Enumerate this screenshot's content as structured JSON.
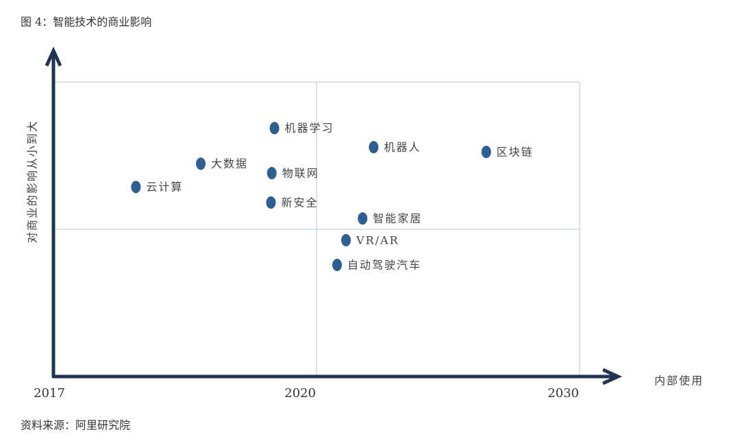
{
  "chart_data": {
    "type": "scatter",
    "title": "图 4：智能技术的商业影响",
    "source": "资料来源：阿里研究院",
    "x_label": "内部使用",
    "y_label": "对商业的影响从小到大",
    "labels": [
      "机器学习",
      "机器人",
      "区块链",
      "大数据",
      "物联网",
      "云计算",
      "新安全",
      "智能家居",
      "VR/AR",
      "自动驾驶汽车"
    ],
    "x": [
      2019.52,
      2022.17,
      2026.45,
      2018.68,
      2019.49,
      2017.94,
      2019.48,
      2021.75,
      2021.12,
      2020.78
    ],
    "values": [
      84.4,
      77.9,
      76.3,
      72.3,
      69.1,
      64.4,
      59.1,
      53.7,
      46.3,
      37.9
    ],
    "color": "#2e5f94",
    "xlim": [
      2017,
      2030
    ],
    "xticks": [
      2017,
      2020,
      2030
    ],
    "ylim": [
      0,
      100
    ],
    "grid": true
  }
}
